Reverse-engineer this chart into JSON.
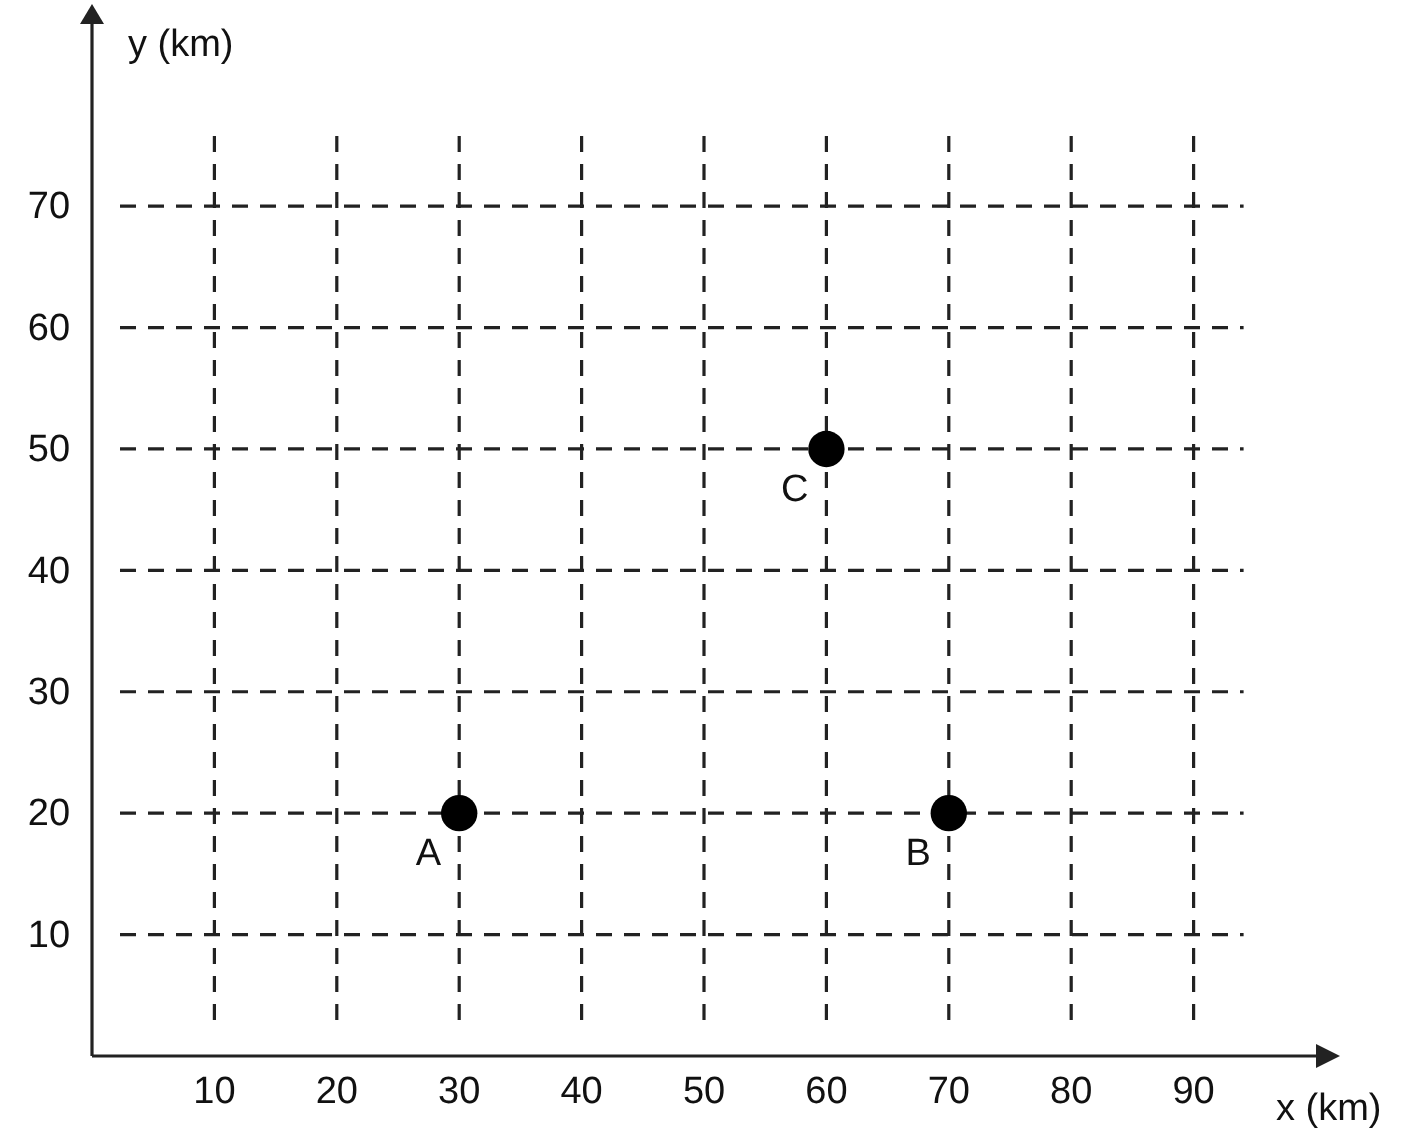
{
  "chart_data": {
    "type": "scatter",
    "xlabel": "x (km)",
    "ylabel": "y (km)",
    "x": [
      30,
      70,
      60
    ],
    "series": [
      {
        "color": "#000000",
        "values": [
          20,
          20,
          50
        ]
      }
    ],
    "xlim": [
      0,
      100
    ],
    "ylim": [
      0,
      85
    ],
    "xticks": [
      10,
      20,
      30,
      40,
      50,
      60,
      70,
      80,
      90
    ],
    "yticks": [
      10,
      20,
      30,
      40,
      50,
      60,
      70
    ],
    "grid": true,
    "marker": "circle",
    "line_style": "dashed",
    "annotations": [
      {
        "text": "A",
        "x": 30,
        "y": 20
      },
      {
        "text": "B",
        "x": 70,
        "y": 20
      },
      {
        "text": "C",
        "x": 60,
        "y": 50
      }
    ]
  }
}
